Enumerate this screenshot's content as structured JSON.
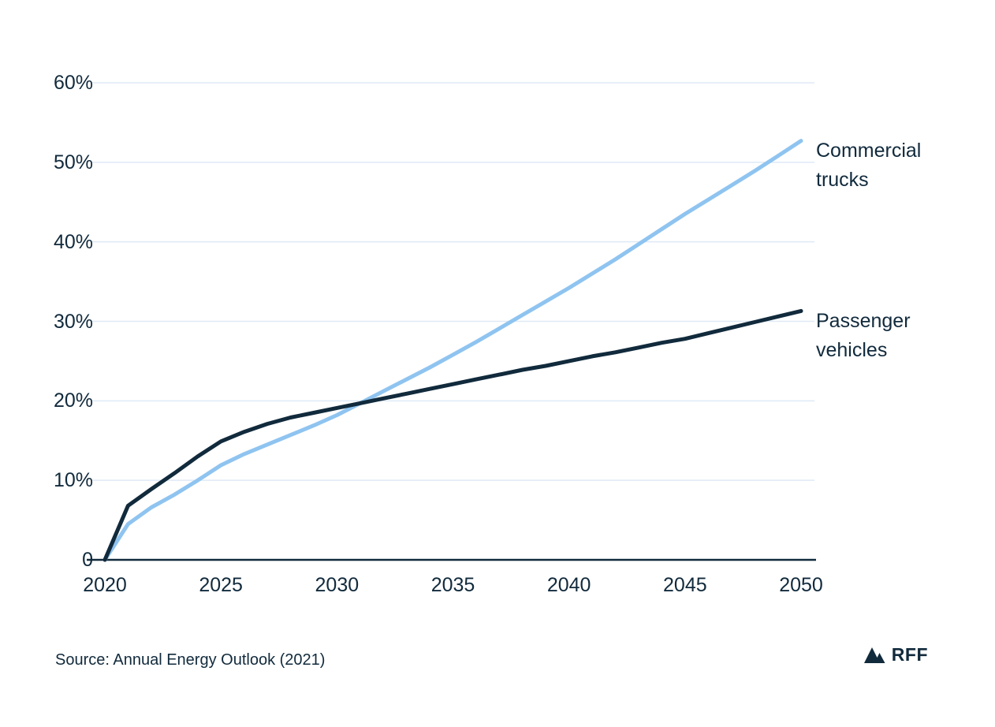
{
  "colors": {
    "navy": "#112A3C",
    "light_blue": "#8FC4F0",
    "gridline": "#DFEAF6",
    "background": "#ffffff"
  },
  "source_note": "Source: Annual Energy Outlook (2021)",
  "logo": {
    "text": "RFF",
    "icon": "mountains-icon"
  },
  "chart_data": {
    "type": "line",
    "title": "",
    "xlabel": "",
    "ylabel": "",
    "xlim": [
      2020,
      2050
    ],
    "ylim": [
      0,
      60
    ],
    "grid": "horizontal",
    "legend": "inline-right-annotations",
    "x_ticks": [
      2020,
      2025,
      2030,
      2035,
      2040,
      2045,
      2050
    ],
    "x_tick_labels": [
      "2020",
      "2025",
      "2030",
      "2035",
      "2040",
      "2045",
      "2050"
    ],
    "y_ticks": [
      0,
      10,
      20,
      30,
      40,
      50,
      60
    ],
    "y_tick_labels": [
      "0",
      "10%",
      "20%",
      "30%",
      "40%",
      "50%",
      "60%"
    ],
    "x": [
      2020,
      2021,
      2022,
      2023,
      2024,
      2025,
      2026,
      2027,
      2028,
      2029,
      2030,
      2031,
      2032,
      2033,
      2034,
      2035,
      2036,
      2037,
      2038,
      2039,
      2040,
      2041,
      2042,
      2043,
      2044,
      2045,
      2046,
      2047,
      2048,
      2049,
      2050
    ],
    "series": [
      {
        "name": "commercial-trucks",
        "label": "Commercial trucks",
        "color": "#8FC4F0",
        "unit": "%",
        "values": [
          0,
          4.5,
          6.6,
          8.2,
          10.0,
          11.9,
          13.3,
          14.5,
          15.7,
          16.9,
          18.2,
          19.7,
          21.2,
          22.7,
          24.2,
          25.8,
          27.4,
          29.1,
          30.8,
          32.5,
          34.2,
          36.0,
          37.8,
          39.7,
          41.6,
          43.5,
          45.3,
          47.1,
          48.9,
          50.8,
          52.7
        ]
      },
      {
        "name": "passenger-vehicles",
        "label": "Passenger vehicles",
        "color": "#112A3C",
        "unit": "%",
        "values": [
          0,
          6.8,
          8.9,
          10.9,
          13.0,
          14.9,
          16.1,
          17.1,
          17.9,
          18.5,
          19.1,
          19.7,
          20.3,
          20.9,
          21.5,
          22.1,
          22.7,
          23.3,
          23.9,
          24.4,
          25.0,
          25.6,
          26.1,
          26.7,
          27.3,
          27.8,
          28.5,
          29.2,
          29.9,
          30.6,
          31.3
        ]
      }
    ]
  }
}
